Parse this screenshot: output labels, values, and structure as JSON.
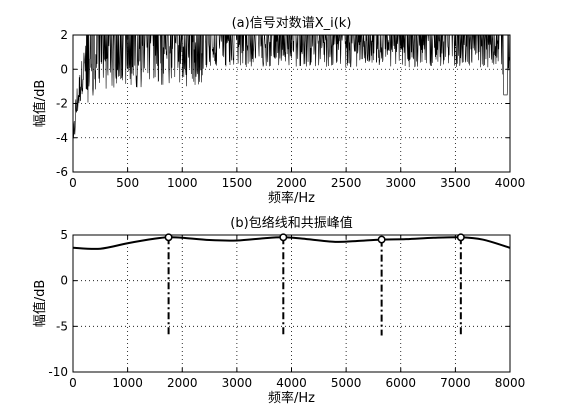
{
  "chart_data": [
    {
      "type": "line",
      "title": "(a)信号对数谱X_i(k)",
      "xlabel": "频率/Hz",
      "ylabel": "幅值/dB",
      "xlim": [
        0,
        4000
      ],
      "ylim": [
        -6,
        2
      ],
      "xticks": [
        0,
        500,
        1000,
        1500,
        2000,
        2500,
        3000,
        3500,
        4000
      ],
      "yticks": [
        -6,
        -4,
        -2,
        0,
        2
      ],
      "grid": true,
      "line_color": "#000000",
      "series": [
        {
          "style": "dense spectrum clipped at 2 dB",
          "x": [
            0,
            20,
            40,
            60,
            80,
            100,
            150,
            200,
            300,
            400,
            500,
            600,
            800,
            1000,
            1200,
            1500,
            2000,
            2500,
            3000,
            3500,
            3900,
            3960,
            4000
          ],
          "y": [
            -5.0,
            -2.8,
            -1.8,
            -1.2,
            -0.5,
            0.2,
            0.8,
            1.2,
            1.4,
            1.5,
            1.5,
            1.5,
            1.6,
            1.6,
            1.6,
            1.7,
            1.7,
            1.7,
            1.7,
            1.7,
            1.7,
            -1.5,
            1.5
          ]
        }
      ]
    },
    {
      "type": "line",
      "title": "(b)包络线和共振峰值",
      "xlabel": "频率/Hz",
      "ylabel": "幅值/dB",
      "xlim": [
        0,
        8000
      ],
      "ylim": [
        -10,
        5
      ],
      "xticks": [
        0,
        1000,
        2000,
        3000,
        4000,
        5000,
        6000,
        7000,
        8000
      ],
      "yticks": [
        -10,
        -5,
        0,
        5
      ],
      "grid": true,
      "line_color": "#000000",
      "series": [
        {
          "style": "envelope",
          "x": [
            0,
            500,
            1000,
            1500,
            1750,
            2000,
            2500,
            3000,
            3500,
            3850,
            4200,
            4800,
            5200,
            5650,
            6100,
            6600,
            7100,
            7500,
            8000
          ],
          "y": [
            3.6,
            3.5,
            4.1,
            4.6,
            4.75,
            4.7,
            4.45,
            4.4,
            4.65,
            4.75,
            4.6,
            4.25,
            4.35,
            4.5,
            4.55,
            4.7,
            4.75,
            4.5,
            3.6
          ]
        }
      ],
      "peaks": [
        {
          "x": 1750,
          "y": 4.75
        },
        {
          "x": 3850,
          "y": 4.75
        },
        {
          "x": 5650,
          "y": 4.5
        },
        {
          "x": 7100,
          "y": 4.75
        }
      ],
      "peak_lines_to": -6
    }
  ]
}
